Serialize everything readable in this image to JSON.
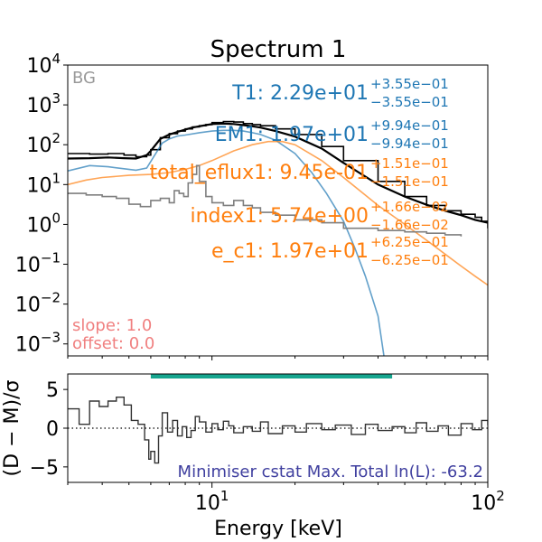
{
  "chart_data": [
    {
      "type": "line",
      "panel": "spectrum",
      "title": "Spectrum 1",
      "xscale": "log",
      "yscale": "log",
      "xlim": [
        3.0,
        100.0
      ],
      "ylim": [
        0.0005,
        10000
      ],
      "yticks": [
        {
          "v": 0.001,
          "m": "10",
          "e": "−3"
        },
        {
          "v": 0.01,
          "m": "10",
          "e": "−2"
        },
        {
          "v": 0.1,
          "m": "10",
          "e": "−1"
        },
        {
          "v": 1,
          "m": "10",
          "e": "0"
        },
        {
          "v": 10,
          "m": "10",
          "e": "1"
        },
        {
          "v": 100,
          "m": "10",
          "e": "2"
        },
        {
          "v": 1000,
          "m": "10",
          "e": "3"
        },
        {
          "v": 10000,
          "m": "10",
          "e": "4"
        }
      ],
      "corner_label": "BG",
      "series": [
        {
          "color": "#000000",
          "style": "data-step",
          "x": [
            3.0,
            3.6,
            4.2,
            4.8,
            5.3,
            5.8,
            6.0,
            6.5,
            7.0,
            7.5,
            8.0,
            8.5,
            9.0,
            9.5,
            10.0,
            11.0,
            12.0,
            13.0,
            14.0,
            15.0,
            17.0,
            20.0,
            25.0,
            30.0,
            40.0,
            50.0,
            60.0,
            70.0,
            80.0,
            90.0,
            95.0,
            100.0
          ],
          "y": [
            60,
            58,
            60,
            55,
            50,
            55,
            75,
            150,
            190,
            220,
            250,
            280,
            300,
            320,
            360,
            380,
            370,
            340,
            320,
            300,
            250,
            180,
            90,
            40,
            12,
            5,
            3,
            2.2,
            1.8,
            1.5,
            1.2,
            0.8
          ]
        },
        {
          "color": "#000000",
          "style": "model",
          "x": [
            3.0,
            3.6,
            4.2,
            4.8,
            5.3,
            5.8,
            6.0,
            6.5,
            7.0,
            7.5,
            8.0,
            8.5,
            9.0,
            9.5,
            10.0,
            11.0,
            12.0,
            13.0,
            14.0,
            15.0,
            17.0,
            20.0,
            25.0,
            30.0,
            40.0,
            50.0,
            60.0,
            70.0,
            80.0,
            90.0,
            100.0
          ],
          "y": [
            45,
            46,
            48,
            46,
            45,
            55,
            70,
            140,
            180,
            210,
            240,
            270,
            290,
            310,
            330,
            340,
            330,
            310,
            290,
            270,
            220,
            160,
            80,
            35,
            10,
            5,
            3.1,
            2.2,
            1.7,
            1.3,
            1.1
          ]
        },
        {
          "color": "#1f77b4",
          "style": "component",
          "x": [
            3.0,
            3.6,
            4.2,
            4.8,
            5.3,
            5.8,
            6.2,
            6.6,
            7.0,
            7.5,
            8.0,
            9.0,
            10.0,
            11.0,
            12.0,
            13.0,
            14.0,
            15.0,
            17.0,
            20.0,
            23.0,
            26.0,
            30.0,
            33.0,
            36.0,
            40.0,
            42.0
          ],
          "y": [
            22,
            30,
            28,
            25,
            23,
            26,
            55,
            110,
            140,
            165,
            175,
            200,
            220,
            230,
            230,
            220,
            200,
            180,
            130,
            60,
            20,
            6,
            1.2,
            0.25,
            0.05,
            0.005,
            0.0005
          ]
        },
        {
          "color": "#ff7f0e",
          "style": "component",
          "x": [
            3.0,
            3.5,
            4.0,
            5.0,
            6.0,
            7.0,
            8.0,
            9.0,
            10.0,
            12.0,
            14.0,
            16.0,
            18.0,
            20.0,
            25.0,
            30.0,
            40.0,
            50.0,
            60.0,
            70.0,
            80.0,
            90.0,
            100.0
          ],
          "y": [
            10,
            13,
            15,
            17,
            18,
            20,
            24,
            30,
            40,
            70,
            100,
            120,
            120,
            100,
            40,
            15,
            3,
            1,
            0.4,
            0.18,
            0.09,
            0.05,
            0.03
          ]
        },
        {
          "color": "#7f7f7f",
          "style": "background-step",
          "x": [
            3.0,
            3.5,
            4.0,
            4.5,
            5.0,
            5.5,
            6.0,
            6.5,
            7.0,
            7.3,
            7.6,
            7.9,
            8.2,
            8.5,
            8.8,
            9.0,
            9.5,
            10.0,
            11.0,
            12.0,
            13.0,
            14.0,
            15.0,
            17.0,
            20.0,
            25.0,
            30.0,
            40.0,
            50.0,
            60.0,
            70.0,
            80.0
          ],
          "y": [
            6,
            5.5,
            5.0,
            4.5,
            3.2,
            2.8,
            4.0,
            4.5,
            3.5,
            7.0,
            6.0,
            5.0,
            11.0,
            18.0,
            30.0,
            12.0,
            5.0,
            3.5,
            3.0,
            4.0,
            3.0,
            2.6,
            2.0,
            1.7,
            1.3,
            1.1,
            0.8,
            0.7,
            0.65,
            0.6,
            0.55,
            0.5
          ]
        }
      ],
      "annotations": [
        {
          "text": "T1: 2.29e+01",
          "sup": "+3.55e−01",
          "sub": "−3.55e−01",
          "color": "#1f77b4"
        },
        {
          "text": "EM1: 1.97e+01",
          "sup": "+9.94e−01",
          "sub": "−9.94e−01",
          "color": "#1f77b4"
        },
        {
          "text": "total_eflux1: 9.45e-01",
          "sup": "+1.51e−01",
          "sub": "−1.51e−01",
          "color": "#ff7f0e"
        },
        {
          "text": "index1: 5.74e+00",
          "sup": "+1.66e−02",
          "sub": "−1.66e−02",
          "color": "#ff7f0e"
        },
        {
          "text": "e_c1: 1.97e+01",
          "sup": "+6.25e−01",
          "sub": "−6.25e−01",
          "color": "#ff7f0e"
        }
      ],
      "notes": [
        {
          "text": "slope: 1.0",
          "color": "#f08080"
        },
        {
          "text": "offset: 0.0",
          "color": "#f08080"
        }
      ]
    },
    {
      "type": "line",
      "panel": "residuals",
      "xscale": "log",
      "xlim": [
        3.0,
        100.0
      ],
      "ylim": [
        -7,
        7
      ],
      "xlabel": "Energy [keV]",
      "ylabel": "(D − M)/σ",
      "xticks": [
        {
          "v": 10,
          "m": "10",
          "e": "1"
        },
        {
          "v": 100,
          "m": "10",
          "e": "2"
        }
      ],
      "yticks": [
        {
          "v": -5,
          "label": "−5"
        },
        {
          "v": 0,
          "label": "0"
        },
        {
          "v": 5,
          "label": "5"
        }
      ],
      "fit_range": [
        6.0,
        45.0
      ],
      "fit_range_color": "#17a68f",
      "x": [
        3.0,
        3.3,
        3.6,
        3.9,
        4.2,
        4.5,
        4.8,
        5.1,
        5.4,
        5.7,
        5.9,
        6.0,
        6.2,
        6.4,
        6.6,
        6.9,
        7.2,
        7.5,
        7.8,
        8.1,
        8.4,
        8.7,
        9.0,
        9.5,
        10.0,
        10.5,
        11.0,
        11.5,
        12.0,
        13.0,
        14.0,
        15.0,
        16.0,
        18.0,
        20.0,
        22.0,
        25.0,
        28.0,
        32.0,
        36.0,
        40.0,
        45.0,
        50.0,
        55.0,
        60.0,
        66.0,
        72.0,
        80.0,
        88.0,
        95.0,
        100.0
      ],
      "y": [
        2.5,
        0.5,
        3.5,
        2.8,
        3.5,
        4.0,
        3.0,
        1.0,
        0.5,
        -1.5,
        -4.0,
        -3.0,
        -4.5,
        -1.0,
        2.0,
        -0.5,
        1.0,
        -1.0,
        0.2,
        -1.2,
        -0.3,
        1.5,
        0.8,
        -0.5,
        0.6,
        -0.2,
        0.9,
        0.3,
        -0.6,
        0.2,
        -0.4,
        0.8,
        -0.7,
        0.3,
        -0.5,
        0.6,
        -0.2,
        0.4,
        -0.8,
        0.5,
        -0.3,
        0.2,
        -0.6,
        0.7,
        -0.4,
        0.3,
        -0.9,
        0.6,
        -0.2,
        1.0,
        0.4
      ],
      "summary": "Minimiser cstat Max. Total ln(L): -63.2"
    }
  ]
}
